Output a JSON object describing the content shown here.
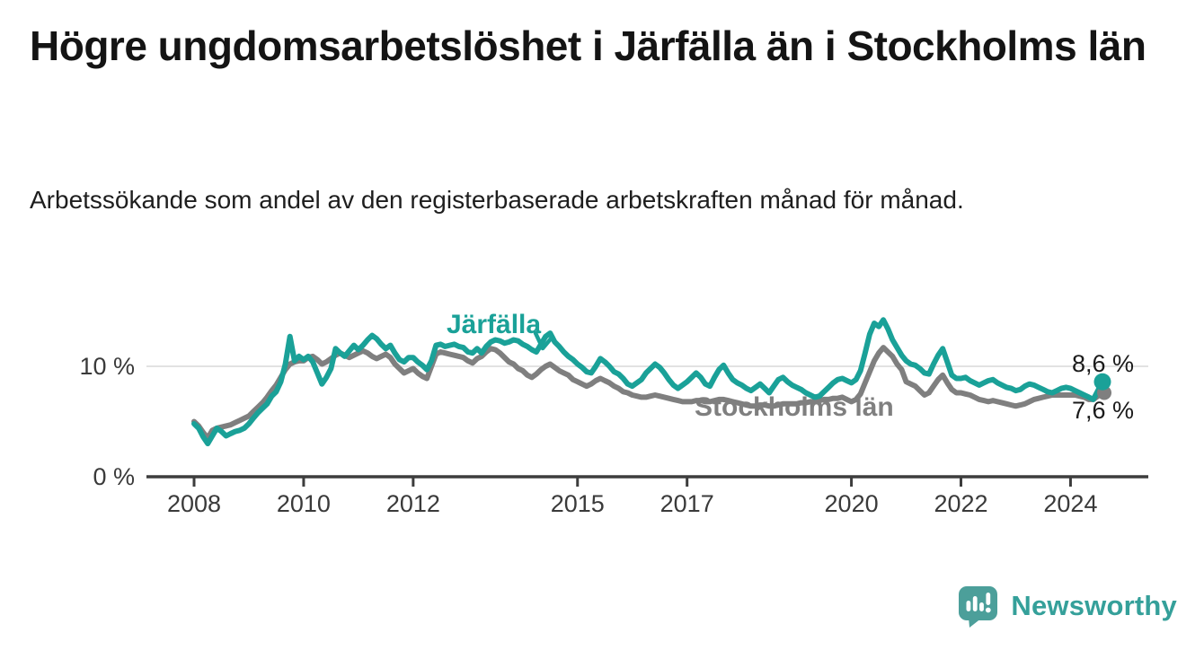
{
  "title": "Högre ungdomsarbetslöshet i Järfälla än i Stockholms län",
  "subtitle": "Arbetssökande som andel av den registerbaserade arbetskraften månad för månad.",
  "branding": {
    "logo_text": "Newsworthy",
    "logo_color": "#4c9f9a",
    "logo_text_color": "#35a09a"
  },
  "chart_data": {
    "type": "line",
    "unit": "%",
    "frequency": "monthly",
    "x_start": "2008-01",
    "x_end": "2024-08",
    "x_tick_years": [
      2008,
      2010,
      2012,
      2015,
      2017,
      2020,
      2022,
      2024
    ],
    "y_ticks": [
      {
        "value": 0,
        "label": "0 %"
      },
      {
        "value": 10,
        "label": "10 %"
      }
    ],
    "ylim": [
      0,
      15.5
    ],
    "grid": "single horizontal gridline at 10 %",
    "legend": "inline series labels on plot",
    "series": [
      {
        "name": "Järfälla",
        "color": "#1aa198",
        "end_label": "8,6 %",
        "last_value": 8.6,
        "values": [
          4.8,
          4.4,
          3.6,
          3.0,
          3.7,
          4.4,
          4.1,
          3.7,
          3.9,
          4.1,
          4.2,
          4.4,
          4.8,
          5.3,
          5.8,
          6.2,
          6.6,
          7.3,
          7.7,
          8.6,
          10.2,
          12.7,
          10.5,
          10.9,
          10.6,
          10.9,
          10.4,
          9.4,
          8.4,
          9.0,
          9.8,
          11.6,
          11.2,
          10.9,
          11.4,
          11.9,
          11.5,
          11.9,
          12.4,
          12.8,
          12.5,
          12.0,
          11.6,
          11.9,
          11.2,
          10.6,
          10.4,
          10.8,
          10.8,
          10.4,
          10.1,
          9.7,
          10.5,
          11.9,
          12.0,
          11.8,
          11.9,
          12.0,
          11.8,
          11.7,
          11.3,
          11.2,
          11.6,
          11.2,
          11.8,
          12.2,
          12.4,
          12.3,
          12.1,
          12.2,
          12.4,
          12.3,
          12.0,
          11.8,
          11.5,
          11.3,
          12.0,
          12.7,
          13.0,
          12.2,
          11.8,
          11.3,
          10.9,
          10.6,
          10.2,
          9.9,
          9.5,
          9.4,
          10.0,
          10.7,
          10.4,
          10.0,
          9.5,
          9.3,
          8.9,
          8.4,
          8.2,
          8.5,
          8.8,
          9.4,
          9.8,
          10.2,
          9.9,
          9.4,
          8.8,
          8.3,
          8.0,
          8.3,
          8.6,
          9.0,
          9.4,
          9.0,
          8.4,
          8.2,
          9.0,
          9.7,
          10.1,
          9.4,
          8.8,
          8.5,
          8.3,
          8.0,
          7.8,
          8.1,
          8.4,
          8.0,
          7.6,
          8.2,
          8.8,
          9.0,
          8.6,
          8.3,
          8.1,
          7.9,
          7.6,
          7.4,
          7.2,
          7.3,
          7.7,
          8.1,
          8.5,
          8.8,
          8.9,
          8.7,
          8.5,
          8.8,
          9.6,
          11.2,
          12.9,
          13.9,
          13.6,
          14.2,
          13.4,
          12.4,
          11.7,
          11.0,
          10.5,
          10.2,
          10.1,
          9.8,
          9.4,
          9.3,
          10.2,
          11.0,
          11.6,
          10.4,
          9.2,
          8.9,
          8.9,
          9.0,
          8.7,
          8.5,
          8.3,
          8.5,
          8.7,
          8.8,
          8.5,
          8.3,
          8.1,
          8.0,
          7.8,
          7.9,
          8.2,
          8.4,
          8.3,
          8.1,
          7.9,
          7.7,
          7.6,
          7.8,
          8.0,
          8.1,
          8.0,
          7.8,
          7.6,
          7.4,
          7.2,
          7.0,
          7.8,
          8.6
        ]
      },
      {
        "name": "Stockholms län",
        "color": "#7f7f7f",
        "end_label": "7,6 %",
        "last_value": 7.6,
        "values": [
          5.0,
          4.6,
          4.0,
          3.5,
          4.2,
          4.4,
          4.5,
          4.6,
          4.7,
          4.9,
          5.1,
          5.3,
          5.5,
          5.9,
          6.3,
          6.7,
          7.2,
          7.8,
          8.3,
          9.0,
          9.7,
          10.2,
          10.4,
          10.5,
          10.5,
          10.8,
          10.9,
          10.6,
          10.2,
          10.4,
          10.7,
          11.0,
          11.2,
          11.0,
          10.8,
          11.0,
          11.2,
          11.4,
          11.2,
          10.9,
          10.7,
          10.9,
          11.1,
          10.8,
          10.2,
          9.8,
          9.4,
          9.6,
          9.8,
          9.4,
          9.1,
          8.9,
          10.0,
          11.1,
          11.3,
          11.2,
          11.1,
          11.0,
          10.9,
          10.8,
          10.5,
          10.3,
          10.7,
          10.9,
          11.3,
          11.6,
          11.5,
          11.2,
          10.8,
          10.4,
          10.2,
          9.8,
          9.6,
          9.2,
          9.0,
          9.3,
          9.7,
          10.0,
          10.2,
          9.9,
          9.6,
          9.4,
          9.2,
          8.8,
          8.6,
          8.4,
          8.2,
          8.4,
          8.7,
          8.9,
          8.7,
          8.5,
          8.2,
          8.0,
          7.7,
          7.6,
          7.4,
          7.3,
          7.2,
          7.2,
          7.3,
          7.4,
          7.3,
          7.2,
          7.1,
          7.0,
          6.9,
          6.8,
          6.8,
          6.8,
          6.9,
          6.9,
          6.8,
          6.8,
          6.9,
          7.0,
          7.0,
          6.9,
          6.8,
          6.7,
          6.6,
          6.5,
          6.4,
          6.4,
          6.5,
          6.5,
          6.4,
          6.4,
          6.5,
          6.6,
          6.6,
          6.6,
          6.6,
          6.7,
          6.7,
          6.8,
          6.8,
          6.9,
          7.0,
          7.0,
          7.1,
          7.1,
          7.2,
          7.0,
          6.8,
          7.0,
          7.5,
          8.5,
          9.5,
          10.5,
          11.2,
          11.7,
          11.3,
          10.9,
          10.2,
          9.7,
          8.6,
          8.4,
          8.2,
          7.8,
          7.4,
          7.6,
          8.2,
          8.8,
          9.2,
          8.5,
          7.9,
          7.6,
          7.6,
          7.5,
          7.4,
          7.2,
          7.0,
          6.9,
          6.8,
          6.9,
          6.8,
          6.7,
          6.6,
          6.5,
          6.4,
          6.5,
          6.6,
          6.8,
          7.0,
          7.1,
          7.2,
          7.3,
          7.4,
          7.4,
          7.4,
          7.4,
          7.4,
          7.4,
          7.3,
          7.2,
          7.0,
          7.0,
          7.3,
          7.6
        ]
      }
    ]
  }
}
